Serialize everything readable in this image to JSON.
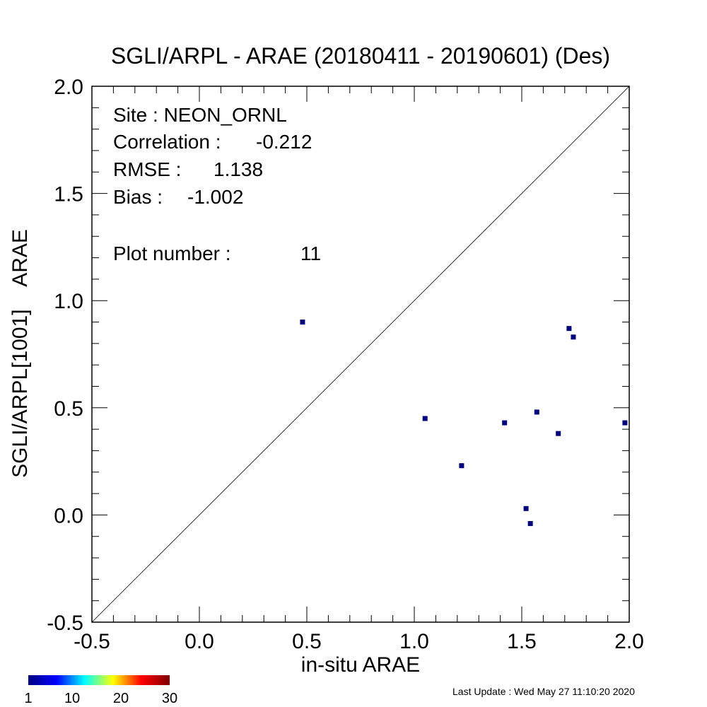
{
  "chart_data": {
    "type": "scatter",
    "title": "SGLI/ARPL - ARAE (20180411 - 20190601) (Des)",
    "xlabel": "in-situ ARAE",
    "ylabel": "SGLI/ARPL[1001]    ARAE",
    "xlim": [
      -0.5,
      2.0
    ],
    "ylim": [
      -0.5,
      2.0
    ],
    "x_ticks": [
      -0.5,
      0.0,
      0.5,
      1.0,
      1.5,
      2.0
    ],
    "y_ticks": [
      -0.5,
      0.0,
      0.5,
      1.0,
      1.5,
      2.0
    ],
    "x_tick_labels": [
      "-0.5",
      "0.0",
      "0.5",
      "1.0",
      "1.5",
      "2.0"
    ],
    "y_tick_labels": [
      "-0.5",
      "0.0",
      "0.5",
      "1.0",
      "1.5",
      "2.0"
    ],
    "minor_tick_step": 0.1,
    "reference_line": "1:1",
    "grid": false,
    "marker_color": "#000080",
    "points": [
      {
        "x": 0.48,
        "y": 0.9
      },
      {
        "x": 1.05,
        "y": 0.45
      },
      {
        "x": 1.22,
        "y": 0.23
      },
      {
        "x": 1.42,
        "y": 0.43
      },
      {
        "x": 1.52,
        "y": 0.03
      },
      {
        "x": 1.54,
        "y": -0.04
      },
      {
        "x": 1.57,
        "y": 0.48
      },
      {
        "x": 1.67,
        "y": 0.38
      },
      {
        "x": 1.72,
        "y": 0.87
      },
      {
        "x": 1.74,
        "y": 0.83
      },
      {
        "x": 1.98,
        "y": 0.43
      }
    ],
    "annotations": {
      "site": "Site : NEON_ORNL",
      "correlation_label": "Correlation :",
      "correlation_value": "-0.212",
      "rmse_label": "RMSE :",
      "rmse_value": "1.138",
      "bias_label": "Bias :",
      "bias_value": "-1.002",
      "plot_number_label": "Plot number :",
      "plot_number_value": "11"
    },
    "colorbar": {
      "labels": [
        "1",
        "10",
        "20",
        "30"
      ],
      "values": [
        1,
        10,
        20,
        30
      ],
      "range": [
        1,
        30
      ],
      "colors": [
        "#000080",
        "#0000ff",
        "#00ffff",
        "#ffff00",
        "#ff0000",
        "#800000"
      ]
    },
    "last_update": "Last Update : Wed May 27 11:10:20 2020"
  }
}
